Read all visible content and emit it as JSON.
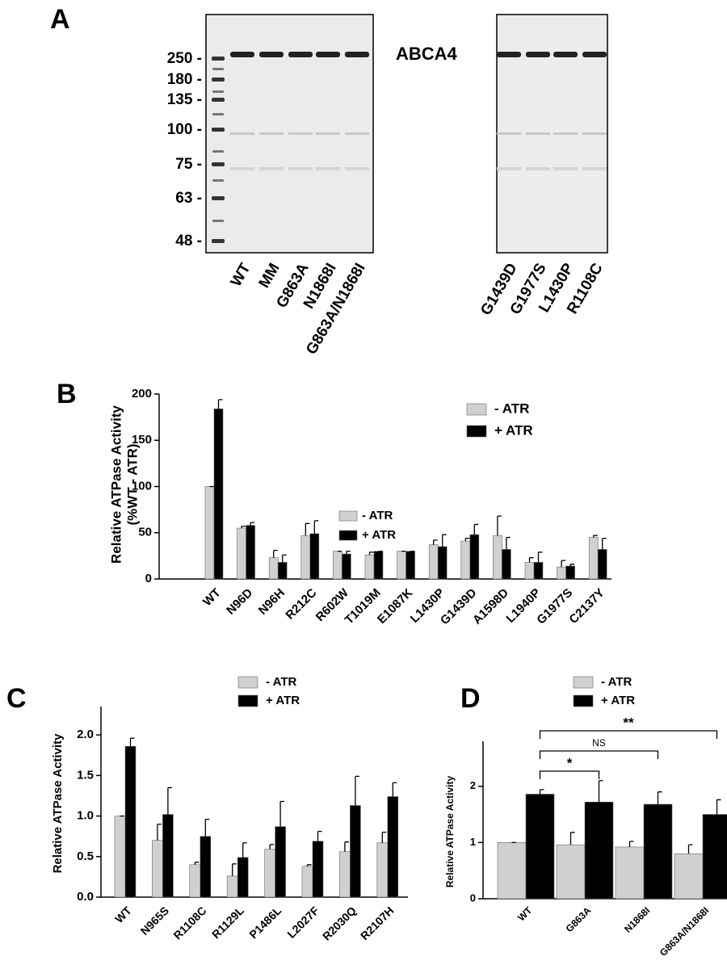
{
  "gel": {
    "panel": "A",
    "protein": "ABCA4",
    "markers": [
      "250 -",
      "180 -",
      "135 -",
      "100 -",
      "75 -",
      "63 -",
      "48 -"
    ],
    "lanes_left": [
      "WT",
      "MM",
      "G863A",
      "N1868I",
      "G863A/N1868I"
    ],
    "lanes_right": [
      "G1439D",
      "G1977S",
      "L1430P",
      "R1108C"
    ]
  },
  "chart_data": [
    {
      "type": "bar",
      "panel": "B",
      "ylabel": [
        "Relative ATPase Activity",
        "(%WT - ATR)"
      ],
      "categories": [
        "WT",
        "N96D",
        "N96H",
        "R212C",
        "R602W",
        "T1019M",
        "E1087K",
        "L1430P",
        "G1439D",
        "A1598D",
        "L1940P",
        "G1977S",
        "C2137Y"
      ],
      "series": [
        {
          "name": "-  ATR",
          "color": "#d0d0d0",
          "values": [
            100,
            55,
            23,
            47,
            30,
            26,
            30,
            37,
            41,
            47,
            18,
            13,
            45
          ],
          "errors": [
            0,
            2,
            8,
            13,
            0,
            3,
            0,
            5,
            3,
            21,
            5,
            7,
            2
          ]
        },
        {
          "name": "+ ATR",
          "color": "#000000",
          "values": [
            184,
            58,
            18,
            49,
            27,
            30,
            30,
            35,
            48,
            32,
            18,
            14,
            32
          ],
          "errors": [
            10,
            3,
            8,
            14,
            3,
            0,
            0,
            13,
            11,
            13,
            11,
            2,
            12
          ]
        }
      ],
      "inset_legend": [
        "- ATR",
        "+ ATR"
      ],
      "ylim": [
        0,
        200
      ],
      "yticks": [
        0,
        50,
        100,
        150,
        200
      ]
    },
    {
      "type": "bar",
      "panel": "C",
      "ylabel": [
        "Relative ATPase Activity"
      ],
      "categories": [
        "WT",
        "N965S",
        "R1108C",
        "R1129L",
        "P1486L",
        "L2027F",
        "R2030Q",
        "R2107H"
      ],
      "series": [
        {
          "name": "- ATR",
          "color": "#d0d0d0",
          "values": [
            1.0,
            0.7,
            0.4,
            0.26,
            0.59,
            0.38,
            0.56,
            0.67
          ],
          "errors": [
            0,
            0.2,
            0.03,
            0.15,
            0.06,
            0.02,
            0.12,
            0.13
          ]
        },
        {
          "name": "+ ATR",
          "color": "#000000",
          "values": [
            1.86,
            1.02,
            0.75,
            0.49,
            0.87,
            0.69,
            1.13,
            1.24
          ],
          "errors": [
            0.1,
            0.33,
            0.21,
            0.18,
            0.31,
            0.12,
            0.36,
            0.17
          ]
        }
      ],
      "ylim": [
        0,
        2.35
      ],
      "yticks": [
        {
          "value": 0,
          "label": "0.0"
        },
        {
          "value": 0.5,
          "label": "0.5"
        },
        {
          "value": 1,
          "label": "1.0"
        },
        {
          "value": 1.5,
          "label": "1.5"
        },
        {
          "value": 2,
          "label": "2.0"
        }
      ]
    },
    {
      "type": "bar",
      "panel": "D",
      "ylabel": [
        "Relative ATPase Activity"
      ],
      "categories": [
        "WT",
        "G863A",
        "N1868I",
        "G863A/N1868I"
      ],
      "series": [
        {
          "name": "- ATR",
          "color": "#d0d0d0",
          "values": [
            1.0,
            0.96,
            0.92,
            0.8
          ],
          "errors": [
            0,
            0.22,
            0.1,
            0.16
          ]
        },
        {
          "name": "+ ATR",
          "color": "#000000",
          "values": [
            1.86,
            1.72,
            1.68,
            1.5
          ],
          "errors": [
            0.08,
            0.38,
            0.22,
            0.26
          ]
        }
      ],
      "comparisons": [
        {
          "label": "*",
          "pair": [
            0,
            1
          ]
        },
        {
          "label": "NS",
          "pair": [
            0,
            2
          ]
        },
        {
          "label": "**",
          "pair": [
            0,
            3
          ]
        }
      ],
      "ylim": [
        0,
        2.8
      ],
      "yticks": [
        0,
        1,
        2
      ]
    }
  ]
}
